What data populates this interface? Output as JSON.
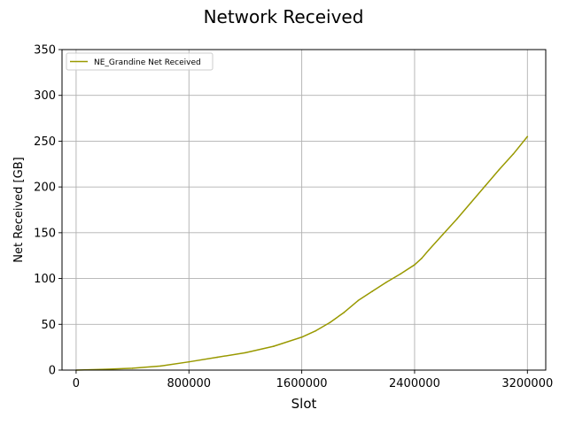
{
  "chart_data": {
    "type": "line",
    "title": "Network Received",
    "xlabel": "Slot",
    "ylabel": "Net Received [GB]",
    "xlim": [
      -100000,
      3330000
    ],
    "ylim": [
      0,
      350
    ],
    "xticks": [
      0,
      800000,
      1600000,
      2400000,
      3200000
    ],
    "xtick_labels": [
      "0",
      "800000",
      "1600000",
      "2400000",
      "3200000"
    ],
    "yticks": [
      0,
      50,
      100,
      150,
      200,
      250,
      300,
      350
    ],
    "ytick_labels": [
      "0",
      "50",
      "100",
      "150",
      "200",
      "250",
      "300",
      "350"
    ],
    "grid": true,
    "legend_position": "top-left",
    "series": [
      {
        "name": "NE_Grandine Net Received",
        "color": "#999900",
        "x": [
          0,
          200000,
          400000,
          600000,
          800000,
          1000000,
          1200000,
          1400000,
          1600000,
          1700000,
          1800000,
          1900000,
          2000000,
          2100000,
          2200000,
          2300000,
          2400000,
          2450000,
          2500000,
          2600000,
          2700000,
          2800000,
          2900000,
          3000000,
          3100000,
          3200000
        ],
        "y": [
          0,
          0.8,
          2,
          4.5,
          9,
          14,
          19,
          26,
          36,
          43,
          52,
          63,
          76,
          86,
          96,
          105,
          115,
          122,
          131,
          148,
          165,
          183,
          201,
          219,
          236,
          255
        ]
      }
    ]
  }
}
